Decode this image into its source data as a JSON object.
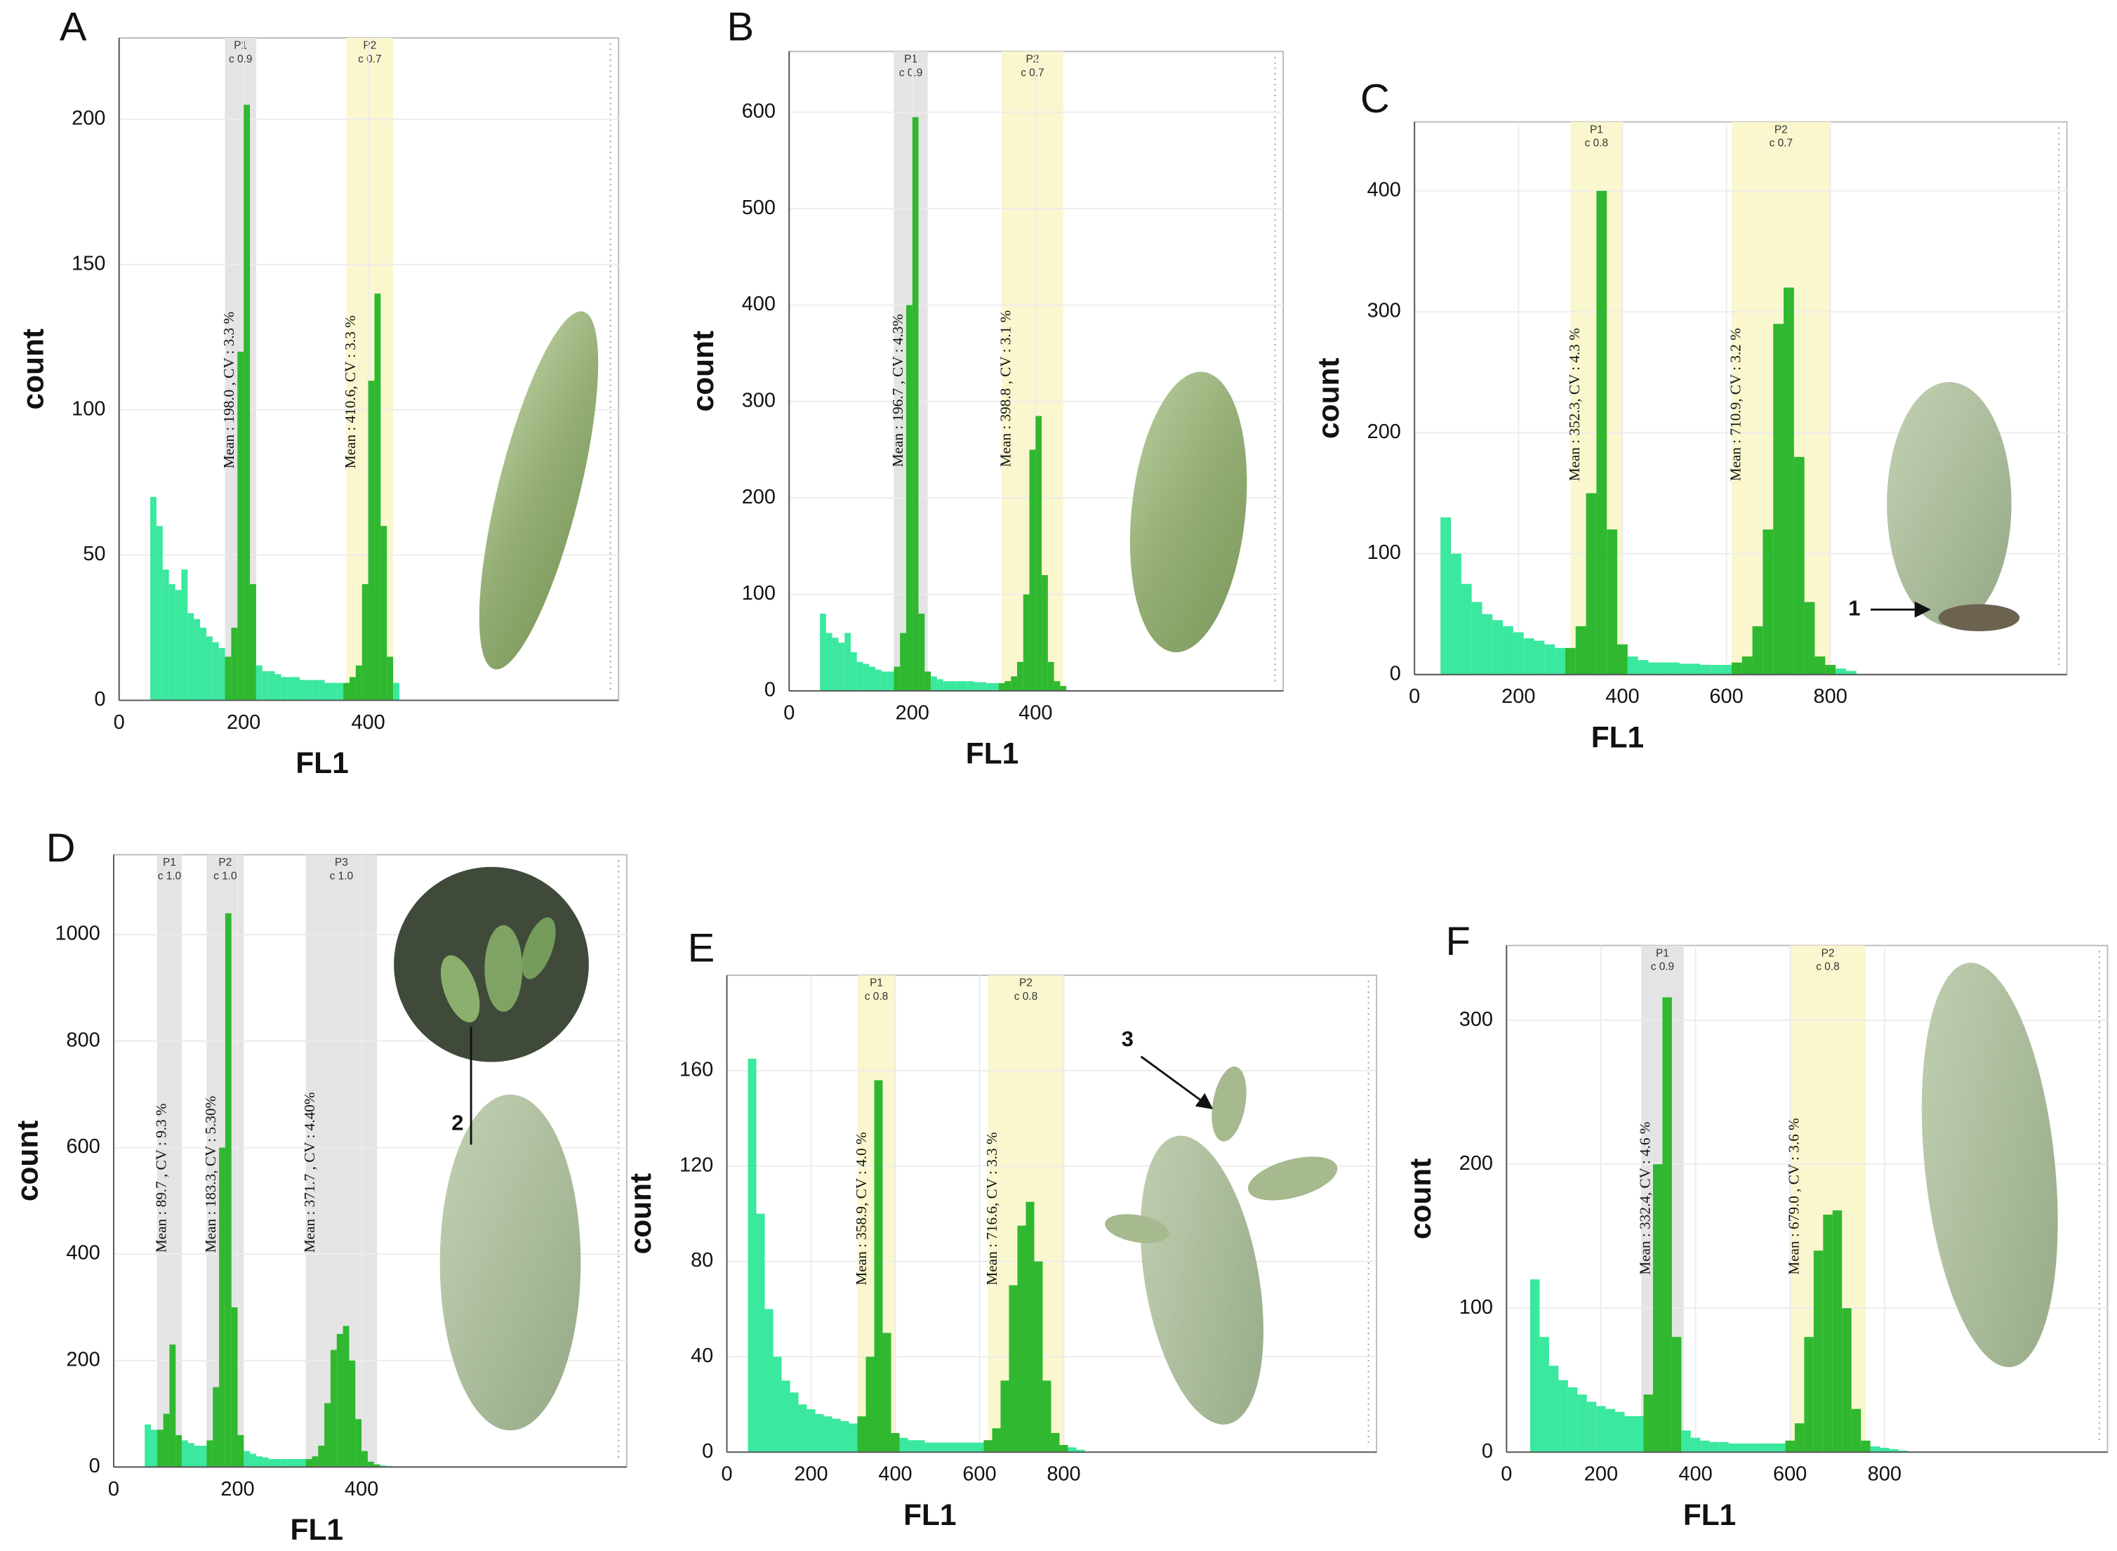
{
  "chart_data": [
    {
      "type": "histogram",
      "panel_label": "A",
      "x_label": "FL1",
      "y_label": "count",
      "xlim": [
        0,
        802
      ],
      "ylim": [
        0,
        228
      ],
      "xticks": [
        0,
        200,
        400
      ],
      "yticks": [
        0,
        50,
        100,
        150,
        200
      ],
      "grid": true,
      "color": "#3ae89e",
      "gate_color": "#2fb830",
      "bins": [
        50,
        60,
        70,
        80,
        90,
        100,
        110,
        120,
        130,
        140,
        150,
        160,
        170,
        180,
        190,
        200,
        210,
        220,
        230,
        240,
        250,
        260,
        270,
        280,
        290,
        300,
        310,
        320,
        330,
        340,
        350,
        360,
        370,
        380,
        390,
        400,
        410,
        420,
        430,
        440,
        450
      ],
      "counts": [
        70,
        60,
        45,
        40,
        38,
        45,
        30,
        28,
        25,
        22,
        20,
        18,
        15,
        25,
        120,
        205,
        40,
        12,
        10,
        10,
        9,
        8,
        8,
        8,
        7,
        7,
        7,
        7,
        6,
        6,
        6,
        6,
        8,
        12,
        40,
        110,
        140,
        60,
        15,
        6
      ],
      "gates": [
        {
          "name": "P1",
          "cv_label": "c 0.9",
          "range": [
            170,
            220
          ],
          "shade": "#e4e4e4",
          "annotation": "Mean : 198.0 ,   CV : 3.3 %"
        },
        {
          "name": "P2",
          "cv_label": "c 0.7",
          "range": [
            365,
            440
          ],
          "shade": "#faf7cf",
          "annotation": "Mean : 410.6,   CV : 3.3 %"
        }
      ]
    },
    {
      "type": "histogram",
      "panel_label": "B",
      "x_label": "FL1",
      "y_label": "count",
      "xlim": [
        0,
        802
      ],
      "ylim": [
        0,
        663
      ],
      "xticks": [
        0,
        200,
        400
      ],
      "yticks": [
        0,
        100,
        200,
        300,
        400,
        500,
        600
      ],
      "grid": true,
      "color": "#3ae89e",
      "gate_color": "#2fb830",
      "bins": [
        50,
        60,
        70,
        80,
        90,
        100,
        110,
        120,
        130,
        140,
        150,
        160,
        170,
        180,
        190,
        200,
        210,
        220,
        230,
        240,
        250,
        260,
        270,
        280,
        290,
        300,
        310,
        320,
        330,
        340,
        350,
        360,
        370,
        380,
        390,
        400,
        410,
        420,
        430,
        440,
        450
      ],
      "counts": [
        80,
        60,
        55,
        50,
        60,
        40,
        30,
        28,
        25,
        22,
        20,
        20,
        25,
        60,
        400,
        595,
        80,
        20,
        15,
        12,
        10,
        10,
        10,
        10,
        10,
        9,
        9,
        8,
        8,
        8,
        10,
        15,
        30,
        100,
        250,
        285,
        120,
        30,
        10,
        5
      ],
      "gates": [
        {
          "name": "P1",
          "cv_label": "c 0.9",
          "range": [
            170,
            225
          ],
          "shade": "#e4e4e4",
          "annotation": "Mean : 196.7 ,   CV : 4.3%"
        },
        {
          "name": "P2",
          "cv_label": "c 0.7",
          "range": [
            345,
            445
          ],
          "shade": "#faf7cf",
          "annotation": "Mean : 398.8 ,   CV : 3.1  %"
        }
      ]
    },
    {
      "type": "histogram",
      "panel_label": "C",
      "x_label": "FL1",
      "y_label": "count",
      "xlim": [
        0,
        1255
      ],
      "ylim": [
        0,
        457
      ],
      "xticks": [
        0,
        200,
        400,
        600,
        800
      ],
      "yticks": [
        0,
        100,
        200,
        300,
        400
      ],
      "grid": true,
      "color": "#3ae89e",
      "gate_color": "#2fb830",
      "bins": [
        50,
        70,
        90,
        110,
        130,
        150,
        170,
        190,
        210,
        230,
        250,
        270,
        290,
        310,
        330,
        350,
        370,
        390,
        410,
        430,
        450,
        470,
        490,
        510,
        530,
        550,
        570,
        590,
        610,
        630,
        650,
        670,
        690,
        710,
        730,
        750,
        770,
        790,
        810,
        830,
        850
      ],
      "counts": [
        130,
        100,
        75,
        60,
        50,
        45,
        40,
        35,
        30,
        28,
        25,
        22,
        22,
        40,
        150,
        400,
        120,
        25,
        15,
        12,
        10,
        10,
        10,
        9,
        9,
        8,
        8,
        8,
        10,
        15,
        40,
        120,
        290,
        320,
        180,
        60,
        15,
        8,
        5,
        3
      ],
      "callout": "1",
      "gates": [
        {
          "name": "P1",
          "cv_label": "c 0.8",
          "range": [
            300,
            400
          ],
          "shade": "#faf7cf",
          "annotation": "Mean : 352.3,   CV : 4.3 %"
        },
        {
          "name": "P2",
          "cv_label": "c 0.7",
          "range": [
            610,
            800
          ],
          "shade": "#faf7cf",
          "annotation": "Mean : 710.9,   CV : 3.2 %"
        }
      ]
    },
    {
      "type": "histogram",
      "panel_label": "D",
      "x_label": "FL1",
      "y_label": "count",
      "xlim": [
        0,
        828
      ],
      "ylim": [
        0,
        1150
      ],
      "xticks": [
        0,
        200,
        400
      ],
      "yticks": [
        0,
        200,
        400,
        600,
        800,
        1000
      ],
      "grid": true,
      "color": "#3ae89e",
      "gate_color": "#2fb830",
      "bins": [
        50,
        60,
        70,
        80,
        90,
        100,
        110,
        120,
        130,
        140,
        150,
        160,
        170,
        180,
        190,
        200,
        210,
        220,
        230,
        240,
        250,
        260,
        270,
        280,
        290,
        300,
        310,
        320,
        330,
        340,
        350,
        360,
        370,
        380,
        390,
        400,
        410,
        420,
        430,
        440,
        450
      ],
      "counts": [
        80,
        70,
        70,
        100,
        230,
        60,
        50,
        45,
        40,
        40,
        50,
        150,
        600,
        1040,
        300,
        60,
        30,
        25,
        20,
        18,
        15,
        15,
        15,
        15,
        15,
        15,
        15,
        20,
        40,
        120,
        220,
        250,
        265,
        200,
        90,
        30,
        10,
        5,
        3,
        2
      ],
      "callout": "2",
      "gates": [
        {
          "name": "P1",
          "cv_label": "c 1.0",
          "range": [
            70,
            110
          ],
          "shade": "#e4e4e4",
          "annotation": "Mean : 89.7 ,   CV : 9.3 %"
        },
        {
          "name": "P2",
          "cv_label": "c 1.0",
          "range": [
            150,
            210
          ],
          "shade": "#e4e4e4",
          "annotation": "Mean : 183.3,  CV : 5.30%"
        },
        {
          "name": "P3",
          "cv_label": "c 1.0",
          "range": [
            310,
            425
          ],
          "shade": "#e4e4e4",
          "annotation": "Mean : 371.7 ,   CV : 4.40%"
        }
      ]
    },
    {
      "type": "histogram",
      "panel_label": "E",
      "x_label": "FL1",
      "y_label": "count",
      "xlim": [
        0,
        1543
      ],
      "ylim": [
        0,
        200
      ],
      "xticks": [
        0,
        200,
        400,
        600,
        800
      ],
      "yticks": [
        0,
        40,
        80,
        120,
        160
      ],
      "grid": true,
      "color": "#3ae89e",
      "gate_color": "#2fb830",
      "bins": [
        50,
        70,
        90,
        110,
        130,
        150,
        170,
        190,
        210,
        230,
        250,
        270,
        290,
        310,
        330,
        350,
        370,
        390,
        410,
        430,
        450,
        470,
        490,
        510,
        530,
        550,
        570,
        590,
        610,
        630,
        650,
        670,
        690,
        710,
        730,
        750,
        770,
        790,
        810,
        830,
        850
      ],
      "counts": [
        165,
        100,
        60,
        40,
        30,
        25,
        20,
        18,
        16,
        15,
        14,
        13,
        12,
        15,
        40,
        156,
        50,
        8,
        6,
        5,
        5,
        4,
        4,
        4,
        4,
        4,
        4,
        4,
        5,
        10,
        30,
        70,
        95,
        105,
        80,
        30,
        8,
        3,
        2,
        1
      ],
      "callout": "3",
      "gates": [
        {
          "name": "P1",
          "cv_label": "c 0.8",
          "range": [
            310,
            400
          ],
          "shade": "#faf7cf",
          "annotation": "Mean : 358.9,  CV : 4.0 %"
        },
        {
          "name": "P2",
          "cv_label": "c 0.8",
          "range": [
            620,
            800
          ],
          "shade": "#faf7cf",
          "annotation": "Mean : 716.6,  CV : 3.3 %"
        }
      ]
    },
    {
      "type": "histogram",
      "panel_label": "F",
      "x_label": "FL1",
      "y_label": "count",
      "xlim": [
        0,
        1272
      ],
      "ylim": [
        0,
        352
      ],
      "xticks": [
        0,
        200,
        400,
        600,
        800
      ],
      "yticks": [
        0,
        100,
        200,
        300
      ],
      "grid": true,
      "color": "#3ae89e",
      "gate_color": "#2fb830",
      "bins": [
        50,
        70,
        90,
        110,
        130,
        150,
        170,
        190,
        210,
        230,
        250,
        270,
        290,
        310,
        330,
        350,
        370,
        390,
        410,
        430,
        450,
        470,
        490,
        510,
        530,
        550,
        570,
        590,
        610,
        630,
        650,
        670,
        690,
        710,
        730,
        750,
        770,
        790,
        810,
        830,
        850
      ],
      "counts": [
        120,
        80,
        60,
        50,
        45,
        40,
        35,
        32,
        30,
        28,
        25,
        25,
        40,
        200,
        316,
        80,
        15,
        10,
        8,
        7,
        7,
        6,
        6,
        6,
        6,
        6,
        6,
        8,
        20,
        80,
        140,
        165,
        168,
        100,
        30,
        8,
        4,
        3,
        2,
        1
      ],
      "gates": [
        {
          "name": "P1",
          "cv_label": "c 0.9",
          "range": [
            285,
            375
          ],
          "shade": "#e4e4e4",
          "annotation": "Mean : 332.4,  CV : 4.6 %"
        },
        {
          "name": "P2",
          "cv_label": "c 0.8",
          "range": [
            600,
            760
          ],
          "shade": "#faf7cf",
          "annotation": "Mean : 679.0 ,  CV : 3.6 %"
        }
      ]
    }
  ]
}
